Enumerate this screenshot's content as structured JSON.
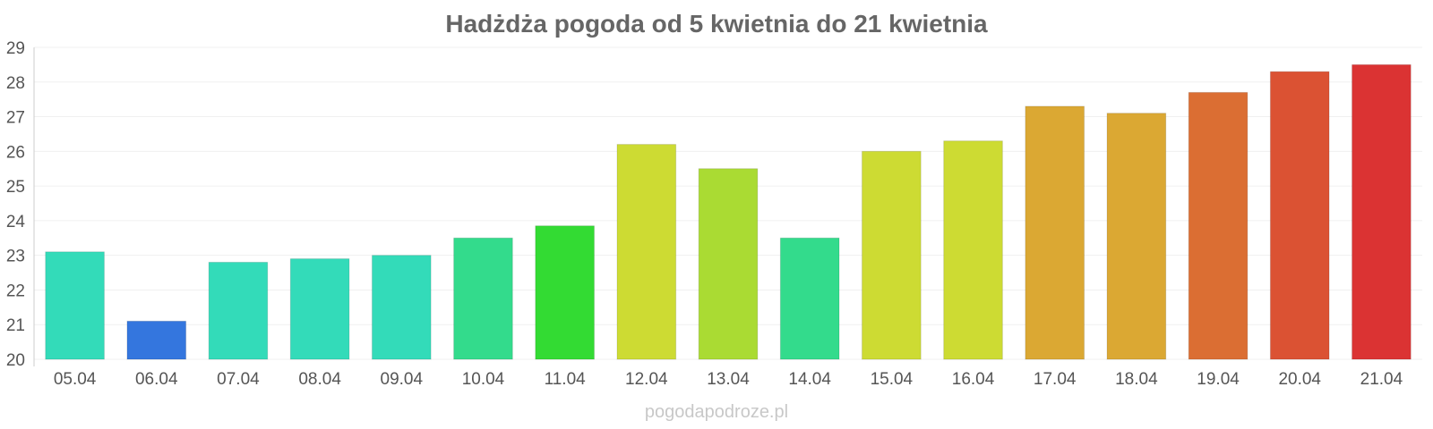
{
  "chart_data": {
    "type": "bar",
    "title": "Hadżdża pogoda od 5 kwietnia do 21 kwietnia",
    "categories": [
      "05.04",
      "06.04",
      "07.04",
      "08.04",
      "09.04",
      "10.04",
      "11.04",
      "12.04",
      "13.04",
      "14.04",
      "15.04",
      "16.04",
      "17.04",
      "18.04",
      "19.04",
      "20.04",
      "21.04"
    ],
    "values": [
      23.1,
      21.1,
      22.8,
      22.9,
      23.0,
      23.5,
      23.85,
      26.2,
      25.5,
      23.5,
      26.0,
      26.3,
      27.3,
      27.1,
      27.7,
      28.3,
      28.5
    ],
    "colors": [
      "#33dbb9",
      "#3476de",
      "#33dbb9",
      "#33dbb9",
      "#33dbb9",
      "#33db8c",
      "#33db33",
      "#cddb33",
      "#aadb33",
      "#33db8c",
      "#cddb33",
      "#cddb33",
      "#dba833",
      "#dba833",
      "#db6e33",
      "#db5233",
      "#db3333"
    ],
    "ylim": [
      20,
      29
    ],
    "yticks": [
      "20",
      "21",
      "22",
      "23",
      "24",
      "25",
      "26",
      "27",
      "28",
      "29"
    ],
    "grid": true,
    "legend": "none"
  },
  "watermark": "pogodapodroze.pl"
}
